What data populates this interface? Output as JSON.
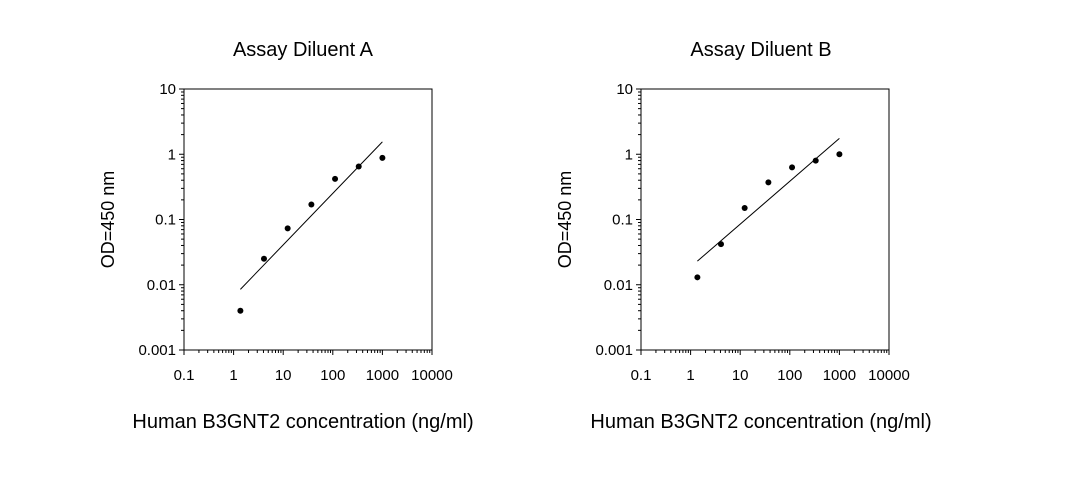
{
  "chart_data": [
    {
      "type": "scatter",
      "title": "Assay Diluent A",
      "xlabel": "Human B3GNT2 concentration (ng/ml)",
      "ylabel": "OD=450 nm",
      "x_scale": "log",
      "y_scale": "log",
      "xlim": [
        0.1,
        10000
      ],
      "ylim": [
        0.001,
        10
      ],
      "x_ticks": [
        "0.1",
        "1",
        "10",
        "100",
        "1000",
        "10000"
      ],
      "y_ticks": [
        "0.001",
        "0.01",
        "0.1",
        "1",
        "10"
      ],
      "grid": false,
      "points": [
        {
          "x": 1.37,
          "y": 0.004
        },
        {
          "x": 4.1,
          "y": 0.025
        },
        {
          "x": 12.3,
          "y": 0.073
        },
        {
          "x": 37,
          "y": 0.17
        },
        {
          "x": 111,
          "y": 0.42
        },
        {
          "x": 333,
          "y": 0.65
        },
        {
          "x": 1000,
          "y": 0.88
        }
      ],
      "fit_line": [
        {
          "x": 1.37,
          "y": 0.0085
        },
        {
          "x": 1000,
          "y": 1.55
        }
      ]
    },
    {
      "type": "scatter",
      "title": "Assay Diluent B",
      "xlabel": "Human B3GNT2 concentration (ng/ml)",
      "ylabel": "OD=450 nm",
      "x_scale": "log",
      "y_scale": "log",
      "xlim": [
        0.1,
        10000
      ],
      "ylim": [
        0.001,
        10
      ],
      "x_ticks": [
        "0.1",
        "1",
        "10",
        "100",
        "1000",
        "10000"
      ],
      "y_ticks": [
        "0.001",
        "0.01",
        "0.1",
        "1",
        "10"
      ],
      "grid": false,
      "points": [
        {
          "x": 1.37,
          "y": 0.013
        },
        {
          "x": 4.1,
          "y": 0.042
        },
        {
          "x": 12.3,
          "y": 0.15
        },
        {
          "x": 37,
          "y": 0.37
        },
        {
          "x": 111,
          "y": 0.63
        },
        {
          "x": 333,
          "y": 0.8
        },
        {
          "x": 1000,
          "y": 1.0
        }
      ],
      "fit_line": [
        {
          "x": 1.37,
          "y": 0.023
        },
        {
          "x": 1000,
          "y": 1.75
        }
      ]
    }
  ]
}
